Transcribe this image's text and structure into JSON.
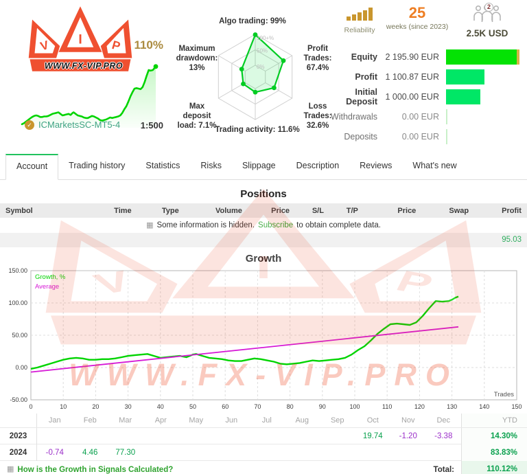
{
  "brand": {
    "logo_text": "WWW.FX-VIP.PRO"
  },
  "colors": {
    "brand_red": "#ef5030",
    "badge_gold": "#ab8b3f",
    "gold": "#c9962e",
    "orange": "#ee7e23",
    "teal": "#3fa383",
    "link_green": "#2fa32f",
    "positive_green": "#0aa14e",
    "negative_purple": "#9b2fc9",
    "growth_line": "#00d400",
    "average_line": "#d619d6",
    "bar_green_bright": "#04e204",
    "bar_green": "#00e766",
    "bar_green_faint": "#c8f0c8"
  },
  "header": {
    "growth_badge": "110%",
    "signal_name": "ICMarketsSC-MT5-4",
    "leverage": "1:500",
    "verified_check": "✓"
  },
  "account_summary": {
    "reliability_label": "Reliability",
    "weeks_value": "25",
    "weeks_label": "weeks (since 2023)",
    "subscribers": "2",
    "price": "2.5K USD",
    "stats": [
      {
        "label": "Equity",
        "value": "2 195.90 EUR",
        "bar_pct": 100,
        "gold_tip": true
      },
      {
        "label": "Profit",
        "value": "1 100.87 EUR",
        "bar_pct": 52,
        "gold_tip": false
      },
      {
        "label": "Initial Deposit",
        "value": "1 000.00 EUR",
        "bar_pct": 47,
        "gold_tip": false
      },
      {
        "label": "Withdrawals",
        "value": "0.00 EUR",
        "bar_pct": 2,
        "gold_tip": false
      },
      {
        "label": "Deposits",
        "value": "0.00 EUR",
        "bar_pct": 2,
        "gold_tip": false
      }
    ]
  },
  "radar": {
    "rings": [
      "100+%",
      "50%",
      "0%"
    ],
    "axes": [
      {
        "label": "Algo trading: 99%",
        "value": 99
      },
      {
        "label": "Profit Trades: 67.4%",
        "value": 67.4
      },
      {
        "label": "Loss Trades: 32.6%",
        "value": 32.6
      },
      {
        "label": "Trading activity: 11.6%",
        "value": 11.6
      },
      {
        "label": "Max deposit load: 7.1%",
        "value": 7.1
      },
      {
        "label": "Maximum drawdown: 13%",
        "value": 13
      }
    ]
  },
  "tabs": {
    "active_index": 0,
    "items": [
      "Account",
      "Trading history",
      "Statistics",
      "Risks",
      "Slippage",
      "Description",
      "Reviews",
      "What's new"
    ]
  },
  "positions": {
    "title": "Positions",
    "columns": [
      "Symbol",
      "Time",
      "Type",
      "Volume",
      "Price",
      "S/L",
      "T/P",
      "Price",
      "Swap",
      "Profit"
    ],
    "notice_pre": "Some information is hidden.",
    "notice_link": "Subscribe",
    "notice_post": "to obtain complete data.",
    "hidden_row_profit": "95.03"
  },
  "chart_data": {
    "type": "line",
    "title": "Growth",
    "xlabel": "Trades",
    "xlim": [
      0,
      150
    ],
    "x_step": 10,
    "ylim": [
      -50,
      150
    ],
    "y_step": 50,
    "grid": true,
    "legend_position": "top-left",
    "series": [
      {
        "name": "Growth, %",
        "color_key": "growth_line",
        "x": [
          0,
          2,
          4,
          6,
          8,
          10,
          12,
          14,
          16,
          18,
          20,
          22,
          24,
          26,
          28,
          30,
          32,
          34,
          36,
          38,
          40,
          42,
          44,
          46,
          48,
          50,
          51,
          53,
          55,
          57,
          59,
          61,
          63,
          65,
          67,
          69,
          71,
          73,
          75,
          77,
          79,
          81,
          83,
          85,
          87,
          89,
          91,
          93,
          95,
          97,
          99,
          101,
          103,
          105,
          107,
          109,
          111,
          113,
          115,
          117,
          119,
          121,
          123,
          125,
          127,
          129,
          130,
          131,
          132
        ],
        "y": [
          -2,
          0,
          3,
          6,
          9,
          12,
          14,
          15,
          14,
          12,
          12,
          13,
          13,
          14,
          16,
          18,
          19,
          20,
          21,
          18,
          15,
          16,
          17,
          18,
          16,
          20,
          21,
          18,
          15,
          14,
          13,
          11,
          10,
          10,
          12,
          14,
          13,
          11,
          9,
          6,
          5,
          6,
          7,
          9,
          11,
          10,
          11,
          12,
          13,
          15,
          20,
          27,
          33,
          42,
          52,
          60,
          67,
          68,
          67,
          66,
          70,
          80,
          92,
          103,
          102,
          103,
          105,
          108,
          110
        ]
      },
      {
        "name": "Average",
        "color_key": "average_line",
        "x": [
          0,
          132
        ],
        "y": [
          -7,
          63
        ]
      }
    ]
  },
  "monthly": {
    "columns": [
      "",
      "Jan",
      "Feb",
      "Mar",
      "Apr",
      "May",
      "Jun",
      "Jul",
      "Aug",
      "Sep",
      "Oct",
      "Nov",
      "Dec",
      "YTD"
    ],
    "rows": [
      {
        "year": "2023",
        "values": [
          "",
          "",
          "",
          "",
          "",
          "",
          "",
          "",
          "",
          "19.74",
          "-1.20",
          "-3.38"
        ],
        "ytd": "14.30%"
      },
      {
        "year": "2024",
        "values": [
          "-0.74",
          "4.46",
          "77.30",
          "",
          "",
          "",
          "",
          "",
          "",
          "",
          "",
          ""
        ],
        "ytd": "83.83%"
      }
    ],
    "footer_link": "How is the Growth in Signals Calculated?",
    "total_label": "Total:",
    "total_value": "110.12%"
  }
}
